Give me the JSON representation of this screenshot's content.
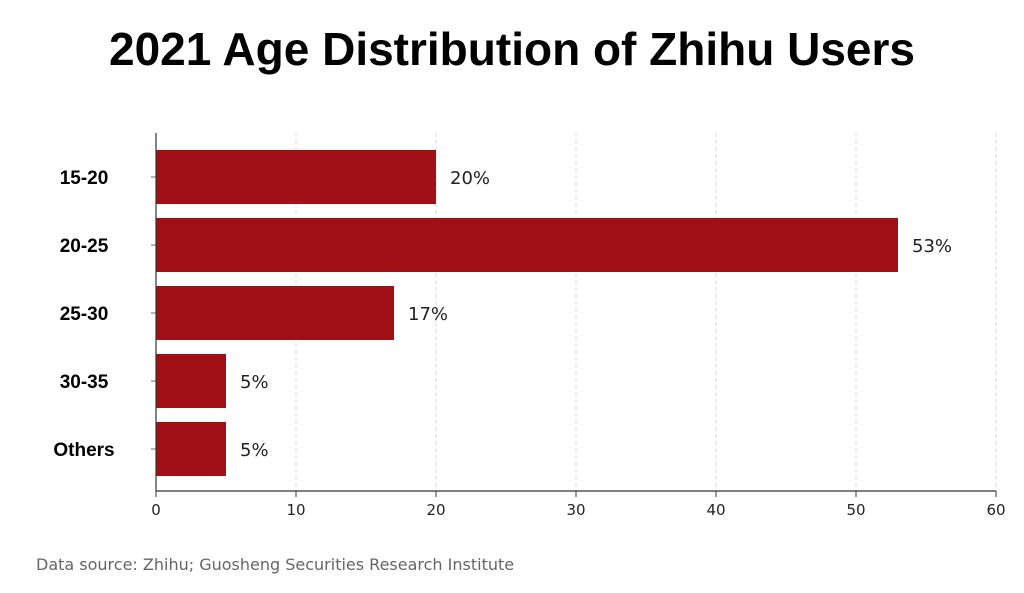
{
  "chart_data": {
    "type": "bar",
    "orientation": "horizontal",
    "title": "2021 Age Distribution of Zhihu Users",
    "xlabel": "",
    "ylabel": "",
    "categories": [
      "15-20",
      "20-25",
      "25-30",
      "30-35",
      "Others"
    ],
    "values": [
      20,
      53,
      17,
      5,
      5
    ],
    "data_labels": [
      "20%",
      "53%",
      "17%",
      "5%",
      "5%"
    ],
    "xlim": [
      0,
      60
    ],
    "xticks": [
      0,
      10,
      20,
      30,
      40,
      50,
      60
    ],
    "grid": "vertical dashed",
    "bar_color": "#a01016"
  },
  "footer": {
    "source": "Data source: Zhihu; Guosheng Securities Research Institute"
  }
}
